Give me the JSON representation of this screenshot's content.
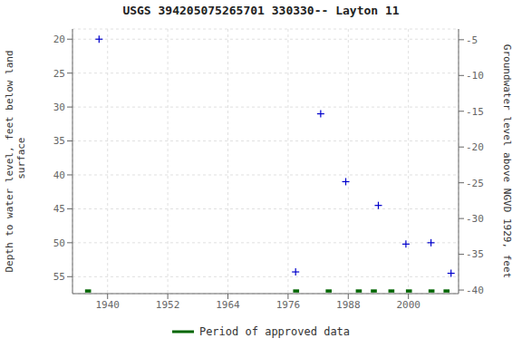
{
  "chart_data": {
    "type": "scatter",
    "title": "USGS 394205075265701 330330-- Layton 11",
    "ylabel": "Depth to water level, feet below land\n surface",
    "y2label": "Groundwater level above NGVD 1929, feet",
    "x": [
      1938.3,
      1977.5,
      1982.5,
      1987.5,
      1994.0,
      1999.5,
      2004.5,
      2008.5
    ],
    "series": [
      {
        "color": "#0000cc",
        "marker": "plus",
        "values": [
          20.0,
          54.3,
          31.0,
          41.0,
          44.5,
          50.2,
          50.0,
          54.5
        ]
      },
      {
        "name": "Period of approved data",
        "type": "span",
        "color": "#006600",
        "spans": [
          {
            "x": 1935.5,
            "width": 1.2
          },
          {
            "x": 1977.0,
            "width": 1.2
          },
          {
            "x": 1983.5,
            "width": 1.2
          },
          {
            "x": 1989.5,
            "width": 1.2
          },
          {
            "x": 1992.5,
            "width": 1.2
          },
          {
            "x": 1996.0,
            "width": 1.2
          },
          {
            "x": 1999.5,
            "width": 1.2
          },
          {
            "x": 2004.0,
            "width": 1.2
          },
          {
            "x": 2007.0,
            "width": 1.2
          }
        ]
      }
    ],
    "xlim": [
      1933,
      2010
    ],
    "xticks": [
      1940,
      1952,
      1964,
      1976,
      1988,
      2000
    ],
    "ylim": [
      57.5,
      18.5
    ],
    "yticks": [
      20,
      25,
      30,
      35,
      40,
      45,
      50,
      55
    ],
    "y2lim": [
      -40.5,
      -3.5
    ],
    "y2ticks": [
      -5,
      -10,
      -15,
      -20,
      -25,
      -30,
      -35,
      -40
    ],
    "grid": true,
    "legend": "bottom"
  }
}
